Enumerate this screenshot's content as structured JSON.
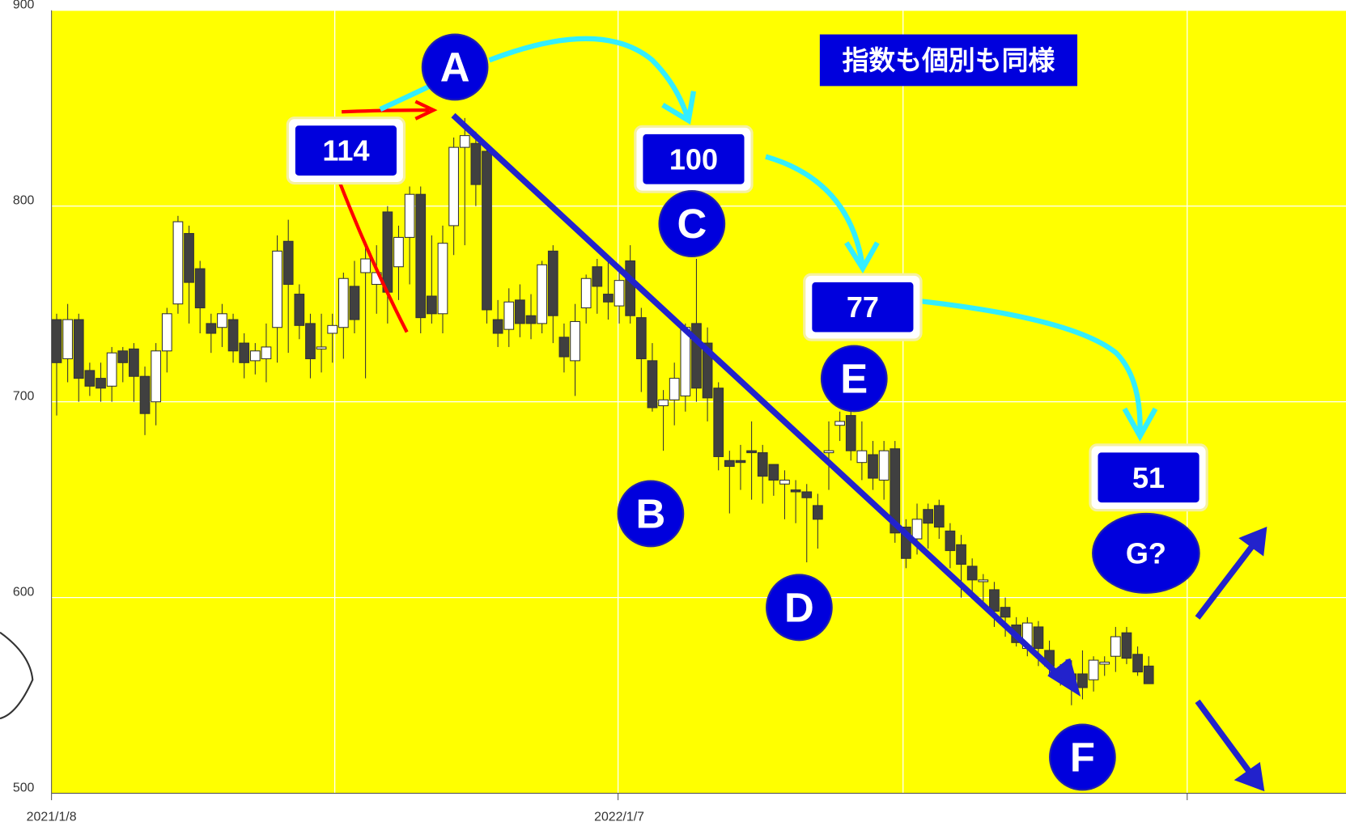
{
  "chart_data": {
    "type": "candlestick",
    "ylim": [
      500,
      900
    ],
    "yticks": [
      500,
      600,
      700,
      800,
      900
    ],
    "grid": true,
    "up_color": "#ffffff",
    "down_color": "#404040",
    "categories": [
      "2021/1/8",
      null,
      null,
      null,
      null,
      null,
      null,
      null,
      null,
      null,
      null,
      null,
      null,
      null,
      null,
      null,
      null,
      null,
      null,
      null,
      null,
      null,
      null,
      null,
      null,
      null,
      null,
      null,
      null,
      null,
      null,
      null,
      null,
      null,
      null,
      null,
      null,
      null,
      null,
      null,
      null,
      null,
      null,
      null,
      null,
      null,
      null,
      null,
      null,
      null,
      null,
      "2022/1/7",
      null,
      null,
      null,
      null,
      null,
      null,
      null,
      null,
      null,
      null,
      null,
      null,
      null,
      null,
      null,
      null,
      null,
      null,
      null,
      null,
      null,
      null,
      null,
      null,
      null,
      null,
      null,
      null,
      null,
      null,
      null,
      null,
      null,
      null,
      null,
      null,
      null,
      null,
      null,
      null,
      null,
      null,
      null,
      null,
      null,
      null,
      null,
      null
    ],
    "open": [
      742,
      722,
      742,
      716,
      712,
      708,
      726,
      727,
      713,
      700,
      726,
      750,
      786,
      768,
      740,
      738,
      742,
      730,
      721,
      722,
      738,
      782,
      755,
      740,
      727,
      735,
      738,
      759,
      766,
      760,
      797,
      769,
      784,
      806,
      754,
      745,
      790,
      830,
      832,
      828,
      742,
      737,
      752,
      744,
      740,
      777,
      733,
      721,
      748,
      769,
      755,
      749,
      772,
      743,
      721,
      698,
      701,
      703,
      740,
      730,
      707,
      670,
      670,
      675,
      674,
      668,
      658,
      655,
      654,
      647,
      674,
      688,
      693,
      669,
      673,
      660,
      676,
      636,
      630,
      645,
      647,
      634,
      627,
      616,
      609,
      604,
      595,
      586,
      574,
      585,
      573,
      563,
      561,
      561,
      558,
      566,
      570,
      582,
      571,
      565
    ],
    "high": [
      745,
      750,
      745,
      720,
      720,
      728,
      728,
      730,
      718,
      730,
      748,
      795,
      790,
      772,
      745,
      750,
      745,
      735,
      730,
      740,
      785,
      793,
      760,
      745,
      745,
      745,
      766,
      772,
      782,
      780,
      800,
      790,
      810,
      810,
      785,
      790,
      835,
      845,
      838,
      830,
      752,
      758,
      760,
      755,
      772,
      780,
      740,
      750,
      765,
      773,
      775,
      768,
      780,
      748,
      730,
      706,
      720,
      740,
      773,
      738,
      710,
      675,
      678,
      690,
      678,
      668,
      665,
      660,
      658,
      653,
      690,
      695,
      698,
      690,
      680,
      680,
      680,
      640,
      648,
      648,
      650,
      638,
      632,
      620,
      612,
      608,
      600,
      590,
      590,
      588,
      578,
      566,
      568,
      573,
      570,
      570,
      585,
      585,
      575,
      570
    ],
    "low": [
      693,
      710,
      700,
      703,
      700,
      700,
      710,
      700,
      683,
      688,
      715,
      745,
      740,
      735,
      725,
      728,
      720,
      712,
      714,
      710,
      720,
      725,
      732,
      712,
      715,
      720,
      722,
      735,
      712,
      745,
      740,
      752,
      760,
      735,
      740,
      735,
      775,
      780,
      800,
      740,
      728,
      728,
      733,
      732,
      735,
      730,
      715,
      703,
      740,
      745,
      742,
      740,
      740,
      705,
      695,
      675,
      688,
      695,
      700,
      690,
      665,
      643,
      655,
      650,
      648,
      652,
      640,
      638,
      618,
      625,
      655,
      680,
      670,
      660,
      655,
      650,
      628,
      615,
      622,
      625,
      630,
      615,
      600,
      600,
      595,
      585,
      580,
      575,
      570,
      565,
      560,
      555,
      545,
      548,
      552,
      560,
      562,
      566,
      560,
      558
    ],
    "close": [
      720,
      742,
      712,
      708,
      707,
      725,
      720,
      713,
      694,
      726,
      745,
      792,
      761,
      748,
      735,
      745,
      726,
      720,
      726,
      728,
      777,
      760,
      739,
      722,
      728,
      739,
      763,
      742,
      773,
      766,
      756,
      784,
      806,
      743,
      745,
      781,
      830,
      836,
      811,
      747,
      735,
      751,
      740,
      740,
      770,
      744,
      723,
      741,
      763,
      759,
      751,
      762,
      744,
      722,
      697,
      701,
      712,
      738,
      707,
      702,
      672,
      667,
      669,
      674,
      662,
      660,
      660,
      654,
      651,
      640,
      675,
      690,
      675,
      675,
      661,
      675,
      633,
      620,
      640,
      638,
      636,
      624,
      617,
      609,
      609,
      593,
      590,
      577,
      587,
      574,
      565,
      561,
      558,
      554,
      568,
      567,
      580,
      569,
      562,
      556
    ],
    "annotations": {
      "banner": "指数も個別も同様",
      "boxes": [
        "114",
        "100",
        "77",
        "51"
      ],
      "points": [
        "A",
        "B",
        "C",
        "D",
        "E",
        "F",
        "G?"
      ]
    }
  }
}
